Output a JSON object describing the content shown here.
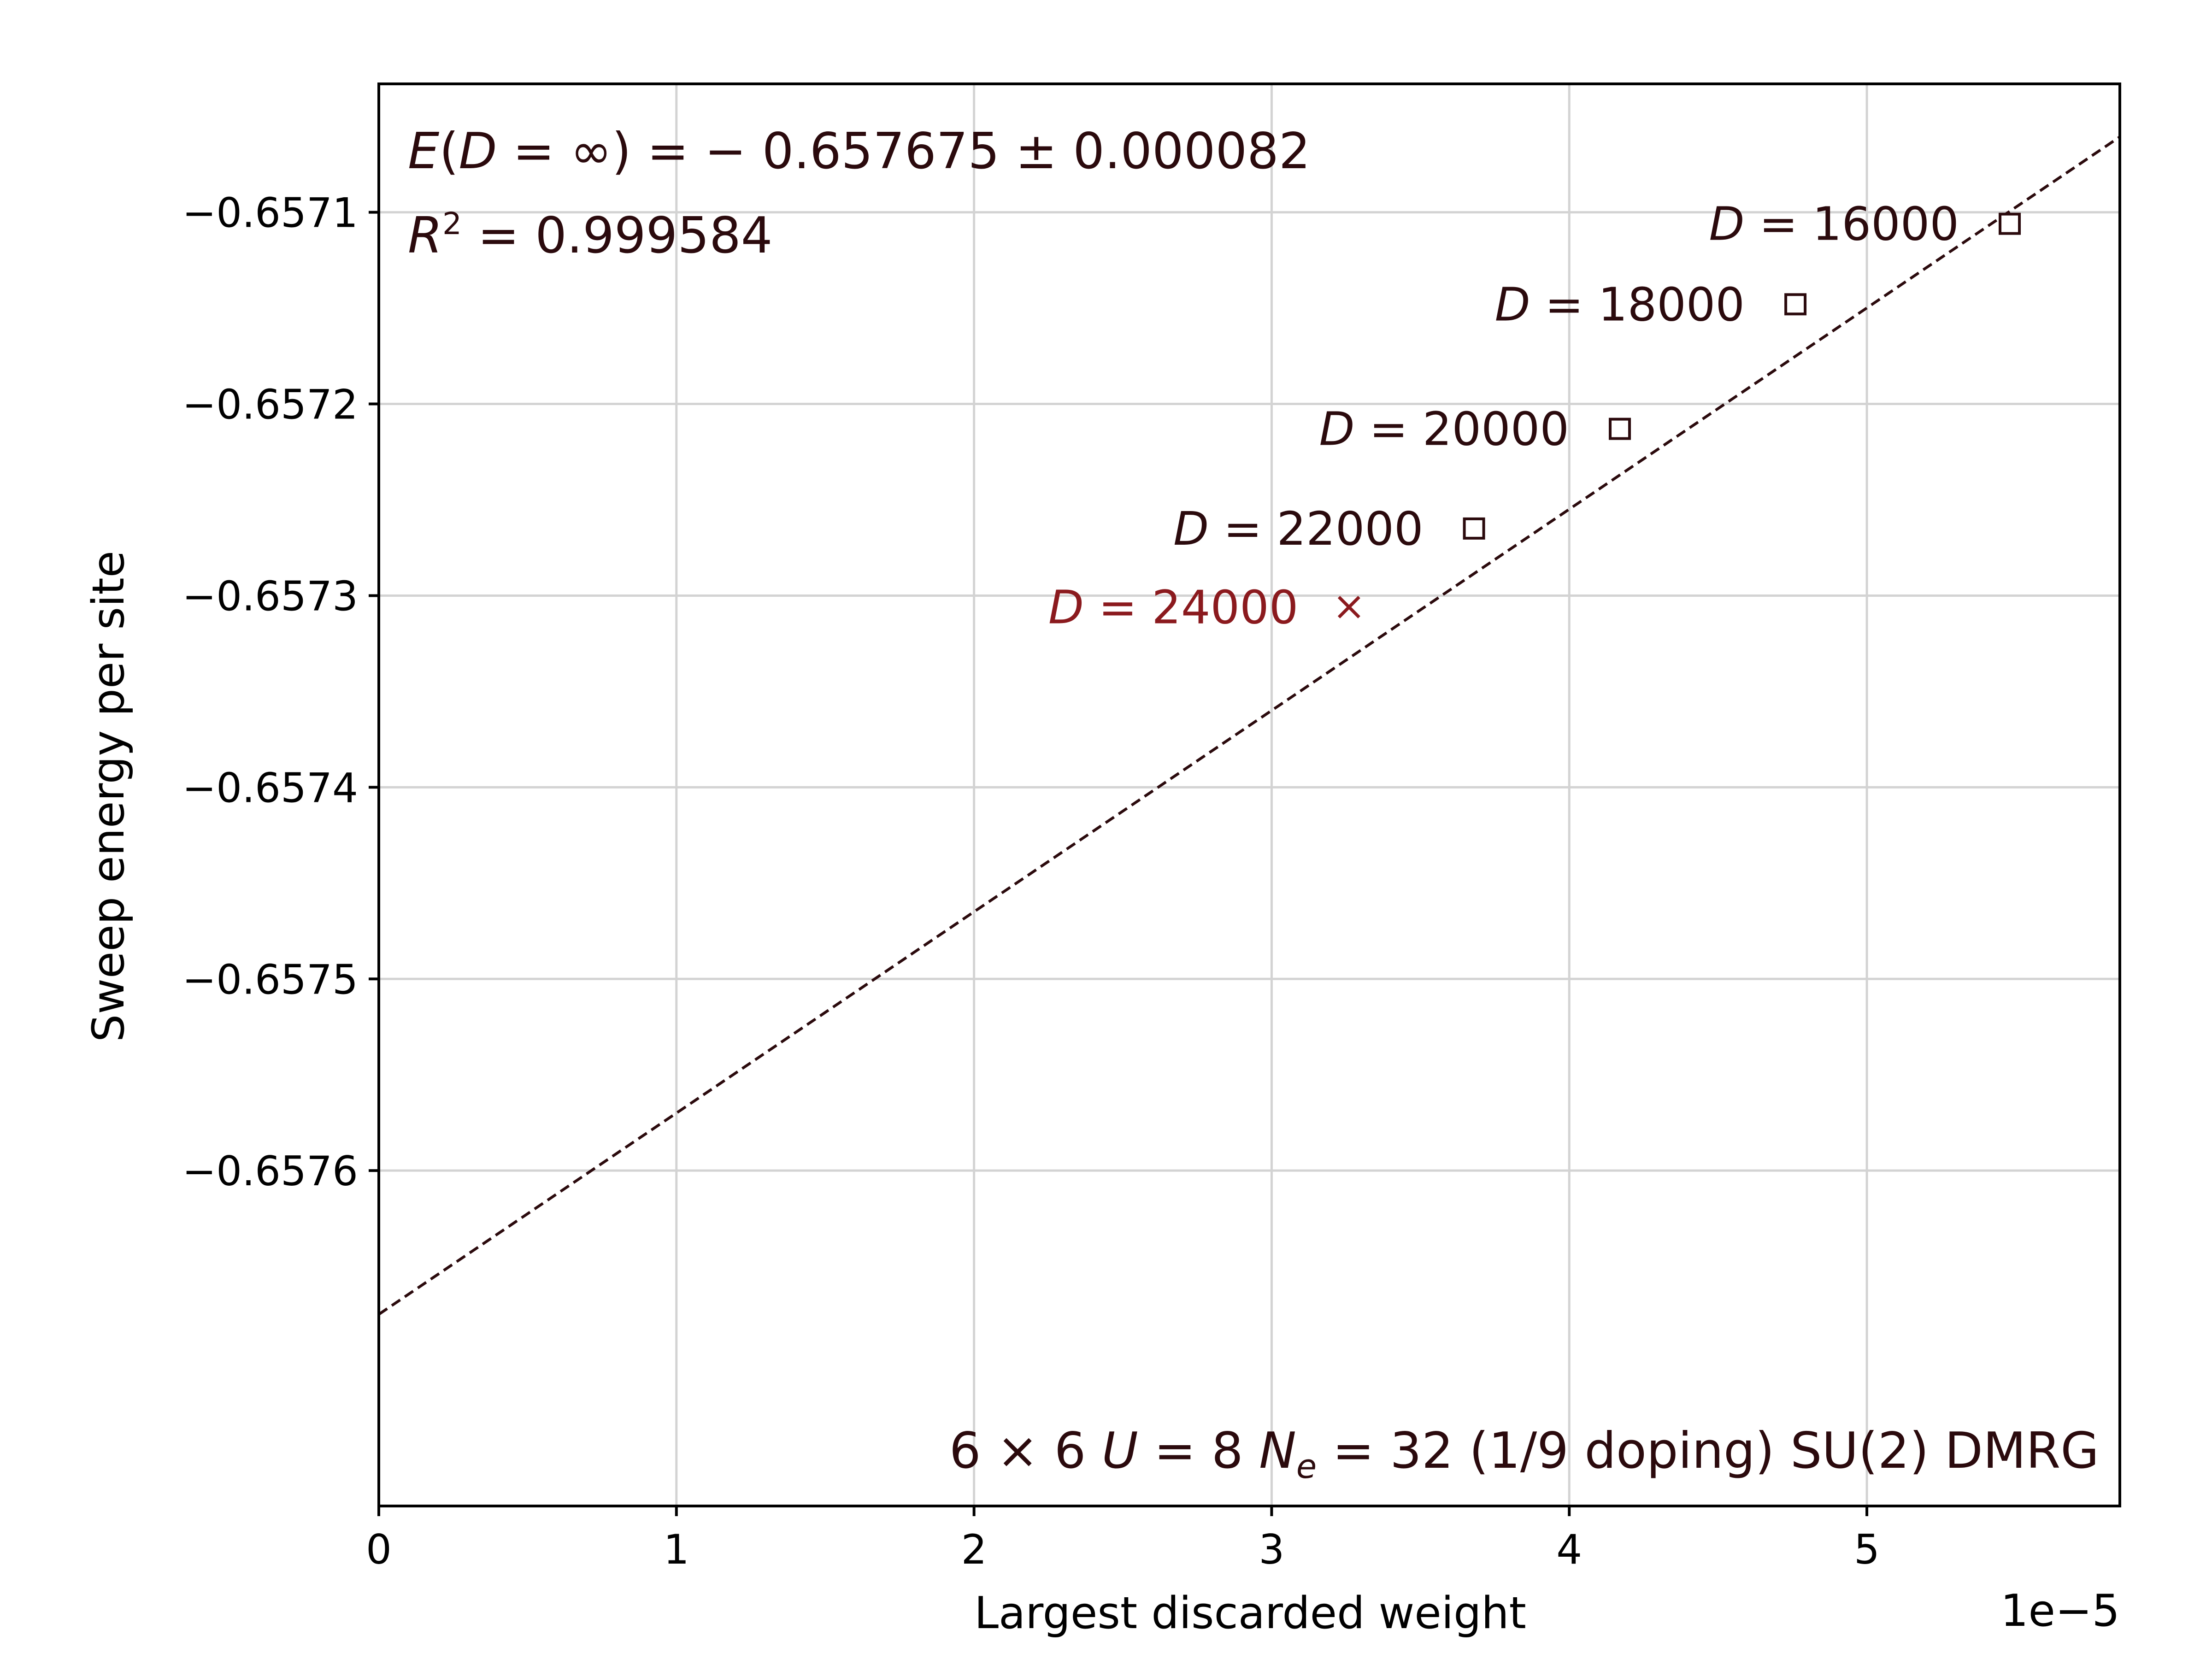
{
  "chart_data": {
    "type": "scatter",
    "xlabel": "Largest discarded weight",
    "ylabel": "Sweep energy per site",
    "x_scale_label": "1e−5",
    "x_scale_factor": 1e-05,
    "xlim": [
      0,
      5.85
    ],
    "ylim": [
      -0.657775,
      -0.657033
    ],
    "xticks": [
      0,
      1,
      2,
      3,
      4,
      5
    ],
    "xtick_labels": [
      "0",
      "1",
      "2",
      "3",
      "4",
      "5"
    ],
    "yticks": [
      -0.6571,
      -0.6572,
      -0.6573,
      -0.6574,
      -0.6575,
      -0.6576
    ],
    "ytick_labels": [
      "−0.6571",
      "−0.6572",
      "−0.6573",
      "−0.6574",
      "−0.6575",
      "−0.6576"
    ],
    "grid": true,
    "colors": {
      "fit": "#2b0a0d",
      "excluded": "#8b1a1e",
      "text": "#2b0a0d"
    },
    "series": [
      {
        "marker": "square",
        "points": [
          {
            "x": 5.48,
            "y": -0.657106,
            "label": "D = 16000"
          },
          {
            "x": 4.76,
            "y": -0.657148,
            "label": "D = 18000"
          },
          {
            "x": 4.17,
            "y": -0.657213,
            "label": "D = 20000"
          },
          {
            "x": 3.68,
            "y": -0.657265,
            "label": "D = 22000"
          }
        ]
      },
      {
        "marker": "x",
        "points": [
          {
            "x": 3.26,
            "y": -0.657306,
            "label": "D = 24000"
          }
        ]
      }
    ],
    "fit_line": {
      "intercept": -0.657675,
      "slope": 0.00010502,
      "style": "dashed"
    },
    "annotations": {
      "energy": "E(D = ∞) = − 0.657675 ± 0.000082",
      "r2": "R² = 0.999584",
      "system": "6 × 6 U = 8 Nₑ = 32 (1/9 doping) SU(2) DMRG"
    }
  }
}
